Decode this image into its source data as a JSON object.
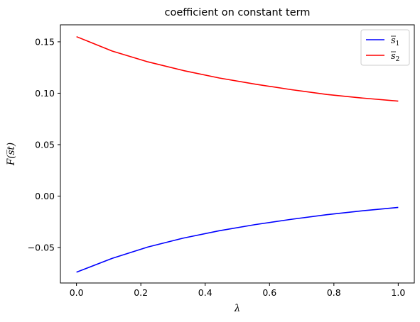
{
  "chart_data": {
    "type": "line",
    "title": "coefficient on constant term",
    "xlabel": "λ",
    "ylabel": "F(s̅t)",
    "xlim": [
      -0.05,
      1.05
    ],
    "ylim": [
      -0.0845,
      0.1665
    ],
    "xticks": [
      0.0,
      0.2,
      0.4,
      0.6,
      0.8,
      1.0
    ],
    "xtick_labels": [
      "0.0",
      "0.2",
      "0.4",
      "0.6",
      "0.8",
      "1.0"
    ],
    "yticks": [
      -0.05,
      0.0,
      0.05,
      0.1,
      0.15
    ],
    "ytick_labels": [
      "−0.05",
      "0.00",
      "0.05",
      "0.10",
      "0.15"
    ],
    "grid": false,
    "legend_position": "top-right",
    "x": [
      0.0,
      0.111,
      0.222,
      0.333,
      0.444,
      0.556,
      0.667,
      0.778,
      0.889,
      1.0
    ],
    "series": [
      {
        "name": "s̅1",
        "name_base": "s",
        "name_sub": "1",
        "color": "#0000ff",
        "values": [
          -0.074,
          -0.0605,
          -0.0495,
          -0.0408,
          -0.0337,
          -0.0277,
          -0.0226,
          -0.0181,
          -0.0143,
          -0.011
        ]
      },
      {
        "name": "s̅2",
        "name_base": "s",
        "name_sub": "2",
        "color": "#ff0000",
        "values": [
          0.155,
          0.141,
          0.1305,
          0.122,
          0.1148,
          0.1088,
          0.1035,
          0.0988,
          0.0953,
          0.0923
        ]
      }
    ]
  }
}
